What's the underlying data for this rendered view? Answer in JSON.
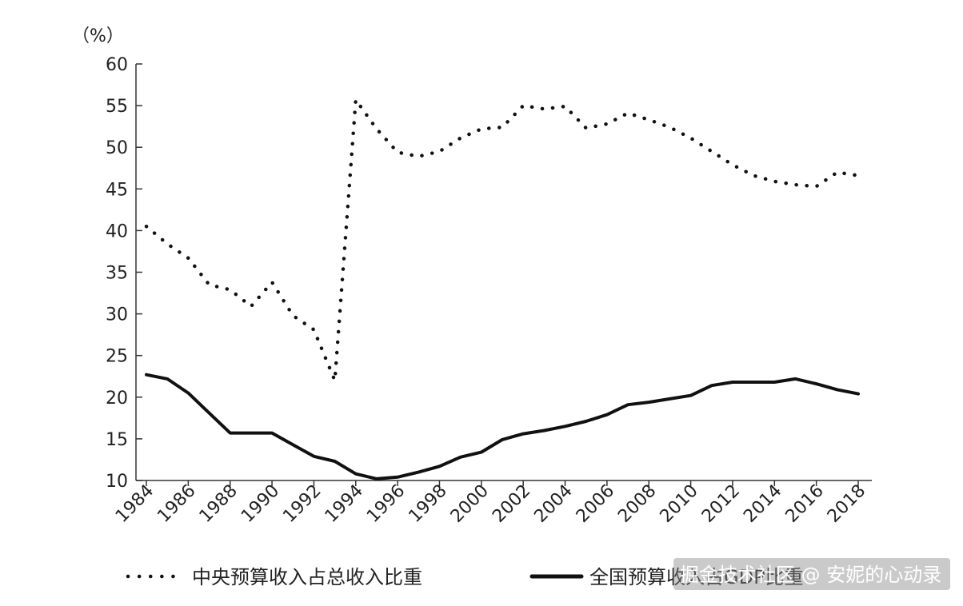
{
  "chart_data": {
    "type": "line",
    "ylabel": "（%）",
    "ylim": [
      10,
      60
    ],
    "xlim": [
      1984,
      2018
    ],
    "grid": false,
    "legend_position": "bottom",
    "y_ticks": [
      "60",
      "55",
      "50",
      "45",
      "40",
      "35",
      "30",
      "25",
      "20",
      "15",
      "10"
    ],
    "x_ticks": [
      "1984",
      "1986",
      "1988",
      "1990",
      "1992",
      "1994",
      "1996",
      "1998",
      "2000",
      "2002",
      "2004",
      "2006",
      "2008",
      "2010",
      "2012",
      "2014",
      "2016",
      "2018"
    ],
    "x": [
      1984,
      1985,
      1986,
      1987,
      1988,
      1989,
      1990,
      1991,
      1992,
      1993,
      1994,
      1995,
      1996,
      1997,
      1998,
      1999,
      2000,
      2001,
      2002,
      2003,
      2004,
      2005,
      2006,
      2007,
      2008,
      2009,
      2010,
      2011,
      2012,
      2013,
      2014,
      2015,
      2016,
      2017,
      2018
    ],
    "series": [
      {
        "name": "中央预算收入占总收入比重",
        "style": "dotted",
        "color": "#111111",
        "values": [
          40.5,
          38.4,
          36.7,
          33.5,
          32.9,
          30.9,
          33.8,
          29.8,
          28.1,
          22.0,
          55.7,
          52.2,
          49.4,
          48.9,
          49.5,
          51.1,
          52.2,
          52.4,
          55.0,
          54.6,
          54.9,
          52.3,
          52.8,
          54.1,
          53.3,
          52.4,
          51.1,
          49.5,
          47.9,
          46.6,
          45.9,
          45.5,
          45.3,
          47.0,
          46.6
        ]
      },
      {
        "name": "全国预算收入占GDP比重",
        "style": "solid",
        "color": "#111111",
        "values": [
          22.7,
          22.2,
          20.5,
          18.1,
          15.7,
          15.7,
          15.7,
          14.3,
          12.9,
          12.3,
          10.8,
          10.2,
          10.4,
          11.0,
          11.7,
          12.8,
          13.4,
          14.9,
          15.6,
          16.0,
          16.5,
          17.1,
          17.9,
          19.1,
          19.4,
          19.8,
          20.2,
          21.4,
          21.8,
          21.8,
          21.8,
          22.2,
          21.6,
          20.9,
          20.4
        ]
      }
    ]
  },
  "watermark": "掘金技术社区 @ 安妮的心动录"
}
